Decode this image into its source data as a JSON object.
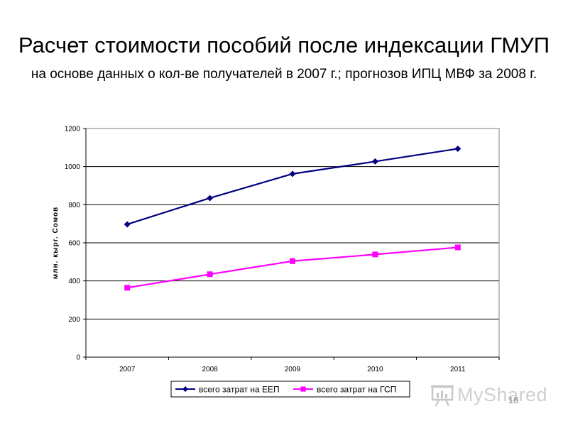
{
  "title": "Расчет стоимости пособий после индексации ГМУП",
  "subtitle": "на основе данных о кол-ве получателей в 2007 г.; прогнозов ИПЦ МВФ за 2008 г.",
  "watermark": "MyShared",
  "page_number": "18",
  "chart_data": {
    "type": "line",
    "categories": [
      "2007",
      "2008",
      "2009",
      "2010",
      "2011"
    ],
    "series": [
      {
        "name": "всего затрат на ЕЕП",
        "values": [
          697,
          835,
          962,
          1027,
          1094
        ],
        "color": "#000080",
        "marker": "diamond"
      },
      {
        "name": "всего затрат на ГСП",
        "values": [
          364,
          435,
          504,
          539,
          576
        ],
        "color": "#ff00ff",
        "marker": "square"
      }
    ],
    "ylabel": "млн. кырг. Сомов",
    "ylim": [
      0,
      1200
    ],
    "yticks": [
      0,
      200,
      400,
      600,
      800,
      1000,
      1200
    ],
    "grid": true,
    "legend_position": "bottom"
  }
}
